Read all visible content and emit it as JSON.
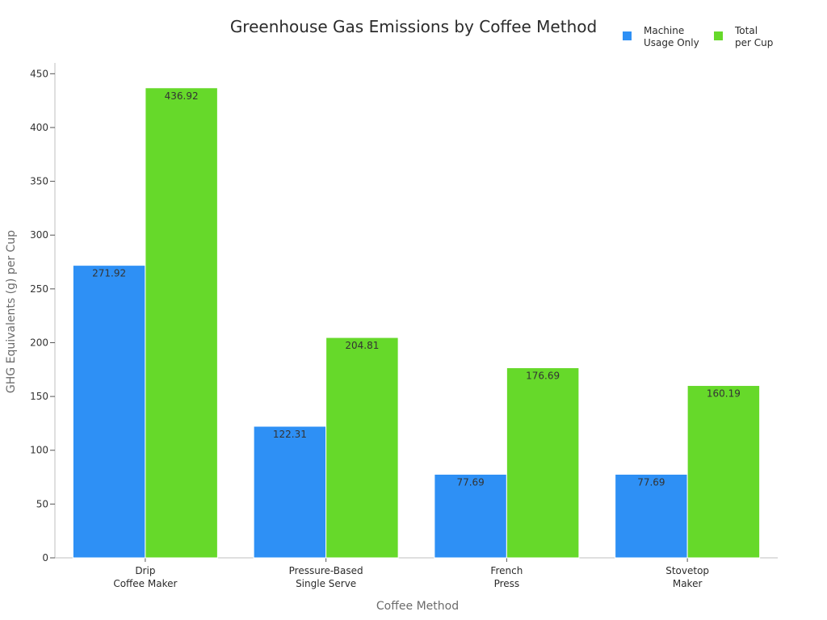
{
  "chart_data": {
    "type": "bar",
    "title": "Greenhouse Gas Emissions by Coffee Method",
    "xlabel": "Coffee Method",
    "ylabel": "GHG Equivalents (g) per Cup",
    "ylim": [
      0,
      460
    ],
    "yticks": [
      0,
      50,
      100,
      150,
      200,
      250,
      300,
      350,
      400,
      450
    ],
    "categories": [
      [
        "Drip",
        "Coffee Maker"
      ],
      [
        "Pressure-Based",
        "Single Serve"
      ],
      [
        "French",
        "Press"
      ],
      [
        "Stovetop",
        "Maker"
      ]
    ],
    "series": [
      {
        "name": [
          "Machine",
          "Usage Only"
        ],
        "color": "#2e90f5",
        "values": [
          271.92,
          122.31,
          77.69,
          77.69
        ]
      },
      {
        "name": [
          "Total",
          "per Cup"
        ],
        "color": "#66d92a",
        "values": [
          436.92,
          204.81,
          176.69,
          160.19
        ]
      }
    ],
    "legend_position": "top-right",
    "grid": false
  }
}
